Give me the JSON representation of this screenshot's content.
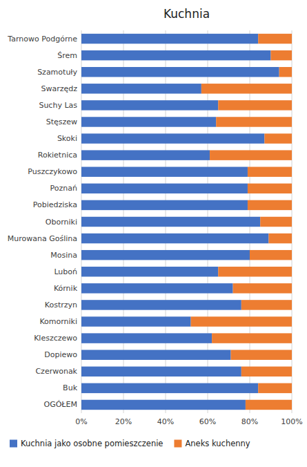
{
  "chart_data": {
    "type": "bar",
    "orientation": "horizontal",
    "stacked": true,
    "title": "Kuchnia",
    "categories": [
      "OGÓŁEM",
      "Buk",
      "Czerwonak",
      "Dopiewo",
      "Kleszczewo",
      "Komorniki",
      "Kostrzyn",
      "Kórnik",
      "Luboń",
      "Mosina",
      "Murowana Goślina",
      "Oborniki",
      "Pobiedziska",
      "Poznań",
      "Puszczykowo",
      "Rokietnica",
      "Skoki",
      "Stęszew",
      "Suchy Las",
      "Swarzędz",
      "Szamotuły",
      "Śrem",
      "Tarnowo Podgórne"
    ],
    "series": [
      {
        "name": "Kuchnia jako osobne pomieszczenie",
        "color": "#4472C4",
        "values": [
          78,
          84,
          76,
          71,
          62,
          52,
          76,
          72,
          65,
          80,
          89,
          85,
          79,
          79,
          79,
          61,
          87,
          64,
          65,
          57,
          94,
          90,
          84
        ]
      },
      {
        "name": "Aneks kuchenny",
        "color": "#ED7D31",
        "values": [
          22,
          16,
          24,
          29,
          38,
          48,
          24,
          28,
          35,
          20,
          11,
          15,
          21,
          21,
          21,
          39,
          13,
          36,
          35,
          43,
          6,
          10,
          16
        ]
      }
    ],
    "xlim": [
      0,
      100
    ],
    "xticks": [
      {
        "value": 0,
        "label": "0%"
      },
      {
        "value": 20,
        "label": "20%"
      },
      {
        "value": 40,
        "label": "40%"
      },
      {
        "value": 60,
        "label": "60%"
      },
      {
        "value": 80,
        "label": "80%"
      },
      {
        "value": 100,
        "label": "100%"
      }
    ],
    "grid": true,
    "legend": "bottom"
  }
}
